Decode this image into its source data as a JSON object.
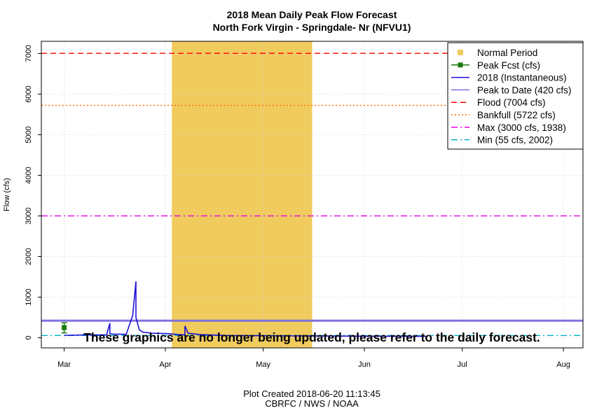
{
  "chart_data": {
    "type": "line",
    "title": "2018 Mean Daily Peak Flow Forecast",
    "subtitle": "North Fork Virgin - Springdale- Nr (NFVU1)",
    "ylabel": "Flow (cfs)",
    "xlabel": "",
    "ylim": [
      -250,
      7300
    ],
    "xlim": [
      "2018-02-22",
      "2018-08-07"
    ],
    "grid": true,
    "y_ticks": [
      0,
      1000,
      2000,
      3000,
      4000,
      5000,
      6000,
      7000
    ],
    "y_tick_labels": [
      "0",
      "1000",
      "2000",
      "3000",
      "4000",
      "5000",
      "6000",
      "7000"
    ],
    "x_ticks": [
      {
        "date": "2018-03-01",
        "label": "Mar"
      },
      {
        "date": "2018-04-01",
        "label": "Apr"
      },
      {
        "date": "2018-05-01",
        "label": "May"
      },
      {
        "date": "2018-06-01",
        "label": "Jun"
      },
      {
        "date": "2018-07-01",
        "label": "Jul"
      },
      {
        "date": "2018-08-01",
        "label": "Aug"
      }
    ],
    "normal_period": {
      "start": "2018-04-03",
      "end": "2018-05-16",
      "color": "#f0cb5e"
    },
    "peak_forecast": {
      "date": "2018-03-01",
      "value": 250,
      "low": 120,
      "high": 370,
      "color": "#1b7a0f"
    },
    "series": [
      {
        "name": "2018  (Instantaneous)",
        "color": "#1f10d8",
        "x": [
          "2018-03-01",
          "2018-03-08",
          "2018-03-14",
          "2018-03-15",
          "2018-03-15",
          "2018-03-16",
          "2018-03-20",
          "2018-03-22",
          "2018-03-23",
          "2018-03-23",
          "2018-03-24",
          "2018-03-25",
          "2018-03-28",
          "2018-04-02",
          "2018-04-05",
          "2018-04-07",
          "2018-04-07",
          "2018-04-08",
          "2018-04-12",
          "2018-04-20",
          "2018-05-01",
          "2018-05-15",
          "2018-06-01",
          "2018-06-20"
        ],
        "y": [
          60,
          70,
          70,
          360,
          100,
          90,
          85,
          550,
          1390,
          500,
          200,
          140,
          110,
          100,
          80,
          70,
          290,
          110,
          75,
          55,
          50,
          45,
          40,
          35
        ]
      }
    ],
    "reference_lines": [
      {
        "name": "Peak to Date (420 cfs)",
        "value": 420,
        "color": "#8070e0",
        "style": "solid"
      },
      {
        "name": "Flood (7004 cfs)",
        "value": 7004,
        "color": "#ff0000",
        "style": "dashed"
      },
      {
        "name": "Bankfull (5722 cfs)",
        "value": 5722,
        "color": "#ff6a00",
        "style": "dotted"
      },
      {
        "name": "Max (3000 cfs, 1938)",
        "value": 3000,
        "color": "#e600e6",
        "style": "dashdot"
      },
      {
        "name": "Min (55 cfs, 2002)",
        "value": 55,
        "color": "#00b4c8",
        "style": "dashdot"
      }
    ],
    "legend": {
      "position": "top-right",
      "entries": [
        {
          "label": "Normal Period",
          "color": "#f0cb5e",
          "kind": "square"
        },
        {
          "label": "Peak Fcst (cfs)",
          "color": "#1b7a0f",
          "kind": "line-square"
        },
        {
          "label": "2018  (Instantaneous)",
          "color": "#1f10d8",
          "kind": "solid"
        },
        {
          "label": "Peak to Date (420 cfs)",
          "color": "#8070e0",
          "kind": "solid"
        },
        {
          "label": "Flood (7004 cfs)",
          "color": "#ff0000",
          "kind": "dashed"
        },
        {
          "label": "Bankfull (5722 cfs)",
          "color": "#ff6a00",
          "kind": "dotted"
        },
        {
          "label": "Max (3000 cfs, 1938)",
          "color": "#e600e6",
          "kind": "dashdot"
        },
        {
          "label": "Min (55 cfs, 2002)",
          "color": "#00b4c8",
          "kind": "dashdot"
        }
      ]
    },
    "notice": "These graphics are no longer being updated, please refer to the daily forecast.",
    "footer": {
      "created": "Plot Created 2018-06-20 11:13:45",
      "credit": "CBRFC / NWS / NOAA"
    }
  }
}
